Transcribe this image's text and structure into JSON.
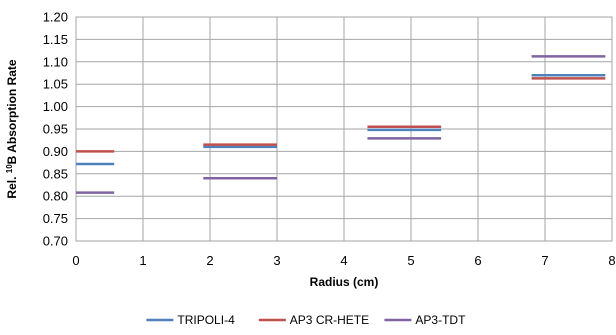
{
  "chart_data": {
    "type": "line",
    "xlabel": "Radius (cm)",
    "ylabel": {
      "prefix": "Rel. ",
      "superscript": "10",
      "suffix": "B Absorption Rate"
    },
    "xlim": [
      0,
      8
    ],
    "ylim": [
      0.7,
      1.2
    ],
    "x_ticks": [
      "0",
      "1",
      "2",
      "3",
      "4",
      "5",
      "6",
      "7",
      "8"
    ],
    "y_ticks": [
      "0.70",
      "0.75",
      "0.80",
      "0.85",
      "0.90",
      "0.95",
      "1.00",
      "1.05",
      "1.10",
      "1.15",
      "1.20"
    ],
    "grid": true,
    "legend_position": "bottom",
    "series": [
      {
        "name": "TRIPOLI-4",
        "color": "#4f81bd",
        "segments": [
          {
            "x": [
              0,
              0.57
            ],
            "y": 0.872
          },
          {
            "x": [
              1.9,
              3.0
            ],
            "y": 0.91
          },
          {
            "x": [
              4.35,
              5.45
            ],
            "y": 0.948
          },
          {
            "x": [
              6.8,
              7.9
            ],
            "y": 1.07
          }
        ]
      },
      {
        "name": "AP3 CR-HETE",
        "color": "#c0504d",
        "segments": [
          {
            "x": [
              0,
              0.57
            ],
            "y": 0.9
          },
          {
            "x": [
              1.9,
              3.0
            ],
            "y": 0.915
          },
          {
            "x": [
              4.35,
              5.45
            ],
            "y": 0.955
          },
          {
            "x": [
              6.8,
              7.9
            ],
            "y": 1.063
          }
        ]
      },
      {
        "name": "AP3-TDT",
        "color": "#8064a2",
        "segments": [
          {
            "x": [
              0,
              0.57
            ],
            "y": 0.808
          },
          {
            "x": [
              1.9,
              3.0
            ],
            "y": 0.84
          },
          {
            "x": [
              4.35,
              5.45
            ],
            "y": 0.929
          },
          {
            "x": [
              6.8,
              7.9
            ],
            "y": 1.112
          }
        ]
      }
    ]
  }
}
